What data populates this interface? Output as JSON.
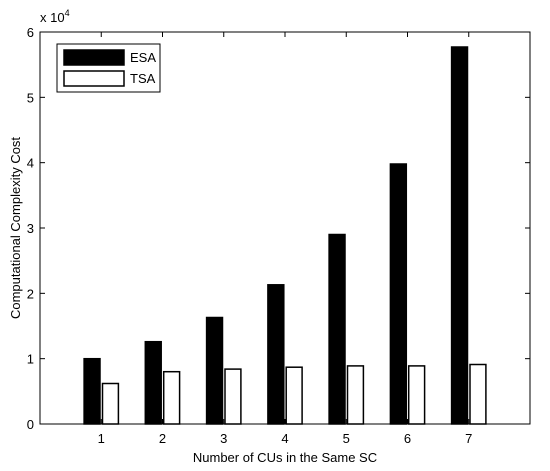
{
  "chart_data": {
    "type": "bar",
    "title": "",
    "xlabel": "Number of CUs in the Same SC",
    "ylabel": "Computational Complexity Cost",
    "y_multiplier_base": "x 10",
    "y_multiplier_exp": "4",
    "categories": [
      "1",
      "2",
      "3",
      "4",
      "5",
      "6",
      "7"
    ],
    "xlim": [
      0,
      8
    ],
    "ylim": [
      0,
      6
    ],
    "yticks": [
      "0",
      "1",
      "2",
      "3",
      "4",
      "5",
      "6"
    ],
    "grid": false,
    "legend_position": "top-left",
    "series": [
      {
        "name": "ESA",
        "color": "#000000",
        "values": [
          1.0,
          1.26,
          1.63,
          2.13,
          2.9,
          3.98,
          5.77
        ]
      },
      {
        "name": "TSA",
        "color": "#ffffff",
        "values": [
          0.62,
          0.8,
          0.84,
          0.87,
          0.89,
          0.89,
          0.91
        ]
      }
    ]
  }
}
